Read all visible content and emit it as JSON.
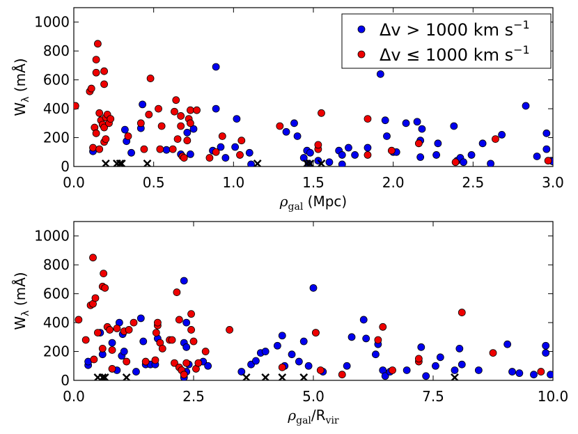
{
  "chart_data": [
    {
      "type": "scatter",
      "xlabel": "ρgal (Mpc)",
      "ylabel": "Wλ (mÅ)",
      "xlim": [
        0.0,
        3.0
      ],
      "ylim": [
        0,
        1100
      ],
      "xticks": [
        "0.0",
        "0.5",
        "1.0",
        "1.5",
        "2.0",
        "2.5",
        "3.0"
      ],
      "yticks": [
        "0",
        "200",
        "400",
        "600",
        "800",
        "1000"
      ],
      "legend": {
        "placement": "top-right",
        "entries": [
          {
            "label": "Δv > 1000 km s⁻¹",
            "color": "#0000ee"
          },
          {
            "label": "Δv ≤ 1000 km s⁻¹",
            "color": "#ee0000"
          }
        ]
      },
      "series": [
        {
          "name": "Δv > 1000 km s⁻¹",
          "color": "#0000ee",
          "points": [
            [
              0.12,
              105
            ],
            [
              0.32,
              255
            ],
            [
              0.33,
              175
            ],
            [
              0.36,
              95
            ],
            [
              0.42,
              265
            ],
            [
              0.43,
              430
            ],
            [
              0.58,
              115
            ],
            [
              0.67,
              85
            ],
            [
              0.71,
              235
            ],
            [
              0.73,
              85
            ],
            [
              0.75,
              260
            ],
            [
              0.89,
              690
            ],
            [
              0.89,
              400
            ],
            [
              0.87,
              110
            ],
            [
              0.92,
              135
            ],
            [
              0.95,
              60
            ],
            [
              1.01,
              135
            ],
            [
              1.02,
              330
            ],
            [
              1.1,
              95
            ],
            [
              1.11,
              15
            ],
            [
              1.33,
              240
            ],
            [
              1.38,
              300
            ],
            [
              1.4,
              210
            ],
            [
              1.44,
              60
            ],
            [
              1.46,
              110
            ],
            [
              1.47,
              20
            ],
            [
              1.48,
              95
            ],
            [
              1.53,
              40
            ],
            [
              1.6,
              30
            ],
            [
              1.66,
              110
            ],
            [
              1.68,
              80
            ],
            [
              1.68,
              15
            ],
            [
              1.72,
              130
            ],
            [
              1.76,
              80
            ],
            [
              1.84,
              130
            ],
            [
              1.92,
              640
            ],
            [
              1.95,
              320
            ],
            [
              1.96,
              210
            ],
            [
              2.0,
              100
            ],
            [
              2.02,
              100
            ],
            [
              2.08,
              300
            ],
            [
              2.15,
              310
            ],
            [
              2.17,
              180
            ],
            [
              2.18,
              260
            ],
            [
              2.17,
              65
            ],
            [
              2.27,
              80
            ],
            [
              2.28,
              160
            ],
            [
              2.38,
              280
            ],
            [
              2.4,
              40
            ],
            [
              2.42,
              60
            ],
            [
              2.44,
              30
            ],
            [
              2.49,
              80
            ],
            [
              2.56,
              160
            ],
            [
              2.61,
              20
            ],
            [
              2.68,
              220
            ],
            [
              2.83,
              420
            ],
            [
              2.9,
              70
            ],
            [
              2.96,
              230
            ],
            [
              2.96,
              120
            ],
            [
              2.99,
              40
            ],
            [
              3.0,
              35
            ]
          ]
        },
        {
          "name": "Δv ≤ 1000 km s⁻¹",
          "color": "#ee0000",
          "points": [
            [
              0.01,
              420
            ],
            [
              0.1,
              520
            ],
            [
              0.11,
              540
            ],
            [
              0.12,
              130
            ],
            [
              0.13,
              270
            ],
            [
              0.14,
              740
            ],
            [
              0.14,
              650
            ],
            [
              0.14,
              230
            ],
            [
              0.15,
              850
            ],
            [
              0.16,
              120
            ],
            [
              0.16,
              370
            ],
            [
              0.17,
              320
            ],
            [
              0.18,
              290
            ],
            [
              0.19,
              660
            ],
            [
              0.19,
              570
            ],
            [
              0.19,
              270
            ],
            [
              0.19,
              170
            ],
            [
              0.2,
              190
            ],
            [
              0.2,
              340
            ],
            [
              0.21,
              360
            ],
            [
              0.22,
              300
            ],
            [
              0.23,
              330
            ],
            [
              0.34,
              210
            ],
            [
              0.42,
              300
            ],
            [
              0.44,
              120
            ],
            [
              0.47,
              360
            ],
            [
              0.48,
              610
            ],
            [
              0.53,
              400
            ],
            [
              0.54,
              120
            ],
            [
              0.55,
              280
            ],
            [
              0.62,
              120
            ],
            [
              0.63,
              380
            ],
            [
              0.64,
              460
            ],
            [
              0.65,
              190
            ],
            [
              0.67,
              350
            ],
            [
              0.67,
              280
            ],
            [
              0.68,
              70
            ],
            [
              0.69,
              60
            ],
            [
              0.71,
              180
            ],
            [
              0.72,
              330
            ],
            [
              0.73,
              300
            ],
            [
              0.73,
              390
            ],
            [
              0.77,
              390
            ],
            [
              0.85,
              60
            ],
            [
              0.89,
              100
            ],
            [
              0.93,
              210
            ],
            [
              1.04,
              80
            ],
            [
              1.05,
              180
            ],
            [
              1.29,
              280
            ],
            [
              1.53,
              120
            ],
            [
              1.53,
              150
            ],
            [
              1.55,
              370
            ],
            [
              1.84,
              330
            ],
            [
              1.84,
              80
            ],
            [
              1.99,
              110
            ],
            [
              2.16,
              160
            ],
            [
              2.39,
              30
            ],
            [
              2.64,
              190
            ],
            [
              2.97,
              40
            ]
          ]
        },
        {
          "name": "upper limits",
          "color": "#000000",
          "marker": "x",
          "points": [
            [
              0.2,
              20
            ],
            [
              0.27,
              20
            ],
            [
              0.29,
              20
            ],
            [
              0.3,
              20
            ],
            [
              0.46,
              20
            ],
            [
              1.15,
              20
            ],
            [
              1.46,
              20
            ],
            [
              1.48,
              20
            ],
            [
              1.55,
              20
            ]
          ]
        }
      ]
    },
    {
      "type": "scatter",
      "xlabel": "ρgal/Rvir",
      "ylabel": "Wλ (mÅ)",
      "xlim": [
        0.0,
        10.0
      ],
      "ylim": [
        0,
        1100
      ],
      "xticks": [
        "0.0",
        "2.5",
        "5.0",
        "7.5",
        "10.0"
      ],
      "yticks": [
        "0",
        "200",
        "400",
        "600",
        "800",
        "1000"
      ],
      "series": [
        {
          "name": "Δv > 1000 km s⁻¹",
          "color": "#0000ee",
          "points": [
            [
              0.3,
              105
            ],
            [
              0.3,
              130
            ],
            [
              0.55,
              330
            ],
            [
              0.6,
              180
            ],
            [
              0.9,
              70
            ],
            [
              0.8,
              260
            ],
            [
              0.95,
              400
            ],
            [
              1.0,
              170
            ],
            [
              1.02,
              320
            ],
            [
              1.05,
              200
            ],
            [
              1.3,
              60
            ],
            [
              1.4,
              430
            ],
            [
              1.45,
              270
            ],
            [
              1.5,
              110
            ],
            [
              1.6,
              110
            ],
            [
              1.7,
              110
            ],
            [
              1.75,
              290
            ],
            [
              2.3,
              690
            ],
            [
              2.35,
              400
            ],
            [
              2.3,
              260
            ],
            [
              2.35,
              230
            ],
            [
              2.4,
              110
            ],
            [
              2.35,
              60
            ],
            [
              2.3,
              20
            ],
            [
              2.7,
              130
            ],
            [
              2.8,
              100
            ],
            [
              3.5,
              60
            ],
            [
              3.7,
              110
            ],
            [
              3.8,
              135
            ],
            [
              3.9,
              190
            ],
            [
              4.0,
              200
            ],
            [
              4.25,
              240
            ],
            [
              4.35,
              310
            ],
            [
              4.4,
              100
            ],
            [
              4.55,
              180
            ],
            [
              4.7,
              130
            ],
            [
              4.8,
              270
            ],
            [
              4.9,
              100
            ],
            [
              5.0,
              640
            ],
            [
              5.05,
              330
            ],
            [
              5.2,
              60
            ],
            [
              5.7,
              100
            ],
            [
              5.8,
              300
            ],
            [
              6.05,
              420
            ],
            [
              6.1,
              290
            ],
            [
              6.3,
              180
            ],
            [
              6.35,
              250
            ],
            [
              6.45,
              70
            ],
            [
              6.5,
              30
            ],
            [
              6.6,
              60
            ],
            [
              6.95,
              70
            ],
            [
              7.25,
              230
            ],
            [
              7.35,
              30
            ],
            [
              7.55,
              100
            ],
            [
              7.65,
              160
            ],
            [
              7.95,
              70
            ],
            [
              8.05,
              220
            ],
            [
              8.1,
              110
            ],
            [
              8.45,
              70
            ],
            [
              9.05,
              250
            ],
            [
              9.15,
              60
            ],
            [
              9.3,
              50
            ],
            [
              9.6,
              40
            ],
            [
              9.85,
              240
            ],
            [
              9.85,
              190
            ],
            [
              9.95,
              40
            ]
          ]
        },
        {
          "name": "Δv ≤ 1000 km s⁻¹",
          "color": "#ee0000",
          "points": [
            [
              0.1,
              420
            ],
            [
              0.25,
              280
            ],
            [
              0.35,
              520
            ],
            [
              0.4,
              850
            ],
            [
              0.4,
              530
            ],
            [
              0.42,
              145
            ],
            [
              0.45,
              570
            ],
            [
              0.5,
              330
            ],
            [
              0.6,
              220
            ],
            [
              0.6,
              650
            ],
            [
              0.62,
              740
            ],
            [
              0.65,
              640
            ],
            [
              0.7,
              370
            ],
            [
              0.75,
              350
            ],
            [
              0.8,
              210
            ],
            [
              0.8,
              80
            ],
            [
              0.9,
              360
            ],
            [
              1.05,
              340
            ],
            [
              1.1,
              130
            ],
            [
              1.15,
              350
            ],
            [
              1.25,
              400
            ],
            [
              1.5,
              130
            ],
            [
              1.7,
              140
            ],
            [
              1.72,
              330
            ],
            [
              1.75,
              380
            ],
            [
              1.8,
              260
            ],
            [
              1.85,
              220
            ],
            [
              1.75,
              400
            ],
            [
              2.0,
              280
            ],
            [
              2.05,
              280
            ],
            [
              2.1,
              120
            ],
            [
              2.15,
              610
            ],
            [
              2.2,
              420
            ],
            [
              2.2,
              90
            ],
            [
              2.25,
              70
            ],
            [
              2.3,
              40
            ],
            [
              2.35,
              120
            ],
            [
              2.45,
              460
            ],
            [
              2.45,
              350
            ],
            [
              2.5,
              270
            ],
            [
              2.55,
              80
            ],
            [
              2.6,
              120
            ],
            [
              2.75,
              200
            ],
            [
              3.25,
              350
            ],
            [
              4.35,
              90
            ],
            [
              5.05,
              330
            ],
            [
              5.15,
              70
            ],
            [
              5.6,
              40
            ],
            [
              6.35,
              280
            ],
            [
              6.45,
              370
            ],
            [
              6.65,
              70
            ],
            [
              7.2,
              130
            ],
            [
              7.2,
              150
            ],
            [
              8.1,
              470
            ],
            [
              8.75,
              190
            ],
            [
              9.75,
              60
            ]
          ]
        },
        {
          "name": "upper limits",
          "color": "#000000",
          "marker": "x",
          "points": [
            [
              0.5,
              20
            ],
            [
              0.6,
              20
            ],
            [
              0.65,
              20
            ],
            [
              1.1,
              20
            ],
            [
              3.6,
              20
            ],
            [
              4.0,
              20
            ],
            [
              4.35,
              20
            ],
            [
              4.8,
              20
            ],
            [
              7.95,
              20
            ]
          ]
        }
      ]
    }
  ]
}
